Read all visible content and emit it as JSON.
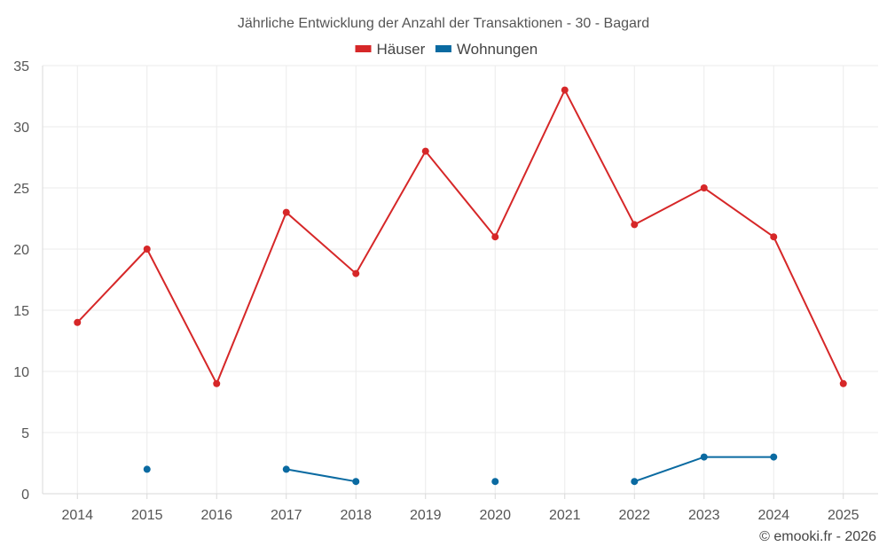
{
  "chart_data": {
    "type": "line",
    "title": "Jährliche Entwicklung der Anzahl der Transaktionen - 30 - Bagard",
    "xlabel": "",
    "ylabel": "",
    "ylim": [
      0,
      35
    ],
    "yticks": [
      "0",
      "5",
      "10",
      "15",
      "20",
      "25",
      "30",
      "35"
    ],
    "categories": [
      "2014",
      "2015",
      "2016",
      "2017",
      "2018",
      "2019",
      "2020",
      "2021",
      "2022",
      "2023",
      "2024",
      "2025"
    ],
    "grid": true,
    "legend_position": "top-center",
    "series": [
      {
        "name": "Häuser",
        "color": "#d62728",
        "values": [
          14,
          20,
          9,
          23,
          18,
          28,
          21,
          33,
          22,
          25,
          21,
          9
        ]
      },
      {
        "name": "Wohnungen",
        "color": "#0a6aa1",
        "values": [
          null,
          2,
          null,
          2,
          1,
          null,
          1,
          null,
          1,
          3,
          3,
          null
        ]
      }
    ]
  },
  "credit": "© emooki.fr - 2026"
}
